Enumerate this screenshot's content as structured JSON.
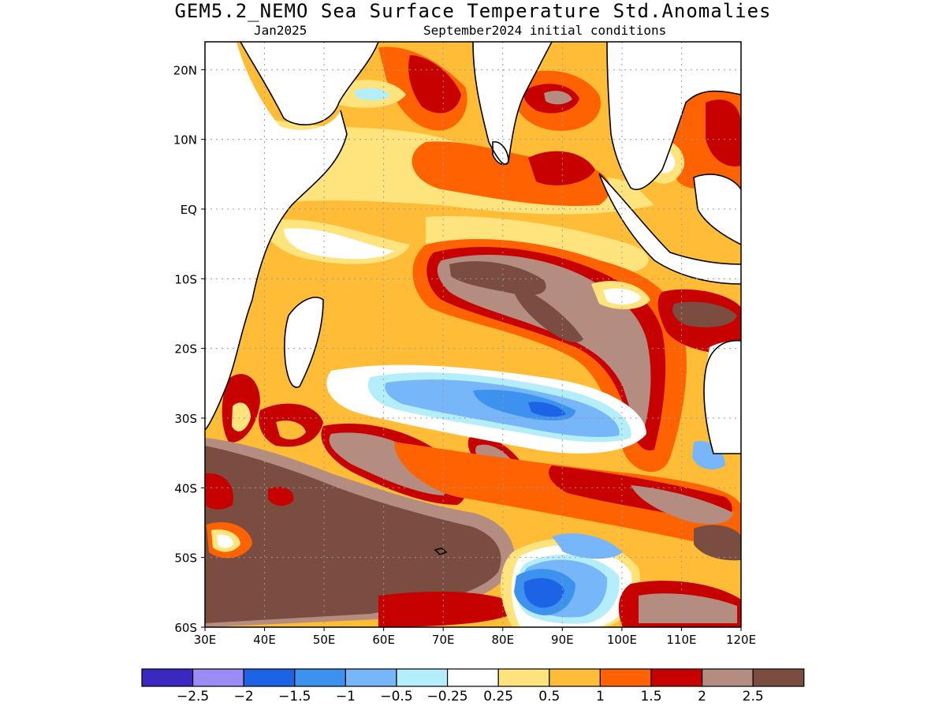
{
  "header": {
    "title": "GEM5.2_NEMO Sea Surface Temperature Std.Anomalies",
    "valid_month": "Jan2025",
    "init_conditions": "September2024 initial conditions"
  },
  "map": {
    "lon_range": [
      30,
      120
    ],
    "lat_range": [
      -60,
      24
    ],
    "lon_ticks": [
      {
        "value": 30,
        "label": "30E"
      },
      {
        "value": 40,
        "label": "40E"
      },
      {
        "value": 50,
        "label": "50E"
      },
      {
        "value": 60,
        "label": "60E"
      },
      {
        "value": 70,
        "label": "70E"
      },
      {
        "value": 80,
        "label": "80E"
      },
      {
        "value": 90,
        "label": "90E"
      },
      {
        "value": 100,
        "label": "100E"
      },
      {
        "value": 110,
        "label": "110E"
      },
      {
        "value": 120,
        "label": "120E"
      }
    ],
    "lat_ticks": [
      {
        "value": 20,
        "label": "20N"
      },
      {
        "value": 10,
        "label": "10N"
      },
      {
        "value": 0,
        "label": "EQ"
      },
      {
        "value": -10,
        "label": "10S"
      },
      {
        "value": -20,
        "label": "20S"
      },
      {
        "value": -30,
        "label": "30S"
      },
      {
        "value": -40,
        "label": "40S"
      },
      {
        "value": -50,
        "label": "50S"
      },
      {
        "value": -60,
        "label": "60S"
      }
    ]
  },
  "colorbar": {
    "colors": [
      "#3a28bf",
      "#9b8cf5",
      "#1d63e6",
      "#3d92f0",
      "#77b7f9",
      "#b4eefa",
      "#ffffff",
      "#ffe47e",
      "#ffbd37",
      "#ff6200",
      "#c70000",
      "#b48c80",
      "#7a4d40"
    ],
    "boundaries": [
      -2.5,
      -2,
      -1.5,
      -1,
      -0.5,
      -0.25,
      0.25,
      0.5,
      1,
      1.5,
      2,
      2.5
    ],
    "labels": [
      "−2.5",
      "−2",
      "−1.5",
      "−1",
      "−0.5",
      "−0.25",
      "0.25",
      "0.5",
      "1",
      "1.5",
      "2",
      "2.5"
    ]
  }
}
